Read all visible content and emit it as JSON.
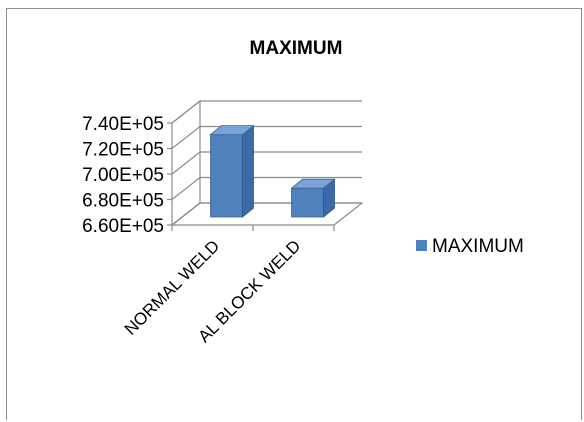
{
  "chart_data": {
    "type": "bar",
    "title": "MAXIMUM",
    "categories": [
      "NORMAL WELD",
      "AL BLOCK WELD"
    ],
    "series": [
      {
        "name": "MAXIMUM",
        "values": [
          734000,
          692000
        ],
        "color": "#4f81bd"
      }
    ],
    "ylim": [
      660000,
      740000
    ],
    "yticks": [
      660000,
      680000,
      700000,
      720000,
      740000
    ],
    "ytick_labels": [
      "6.60E+05",
      "6.80E+05",
      "7.00E+05",
      "7.20E+05",
      "7.40E+05"
    ],
    "xlabel": "",
    "ylabel": "",
    "grid": true,
    "legend": "right",
    "style": "3d-column"
  }
}
